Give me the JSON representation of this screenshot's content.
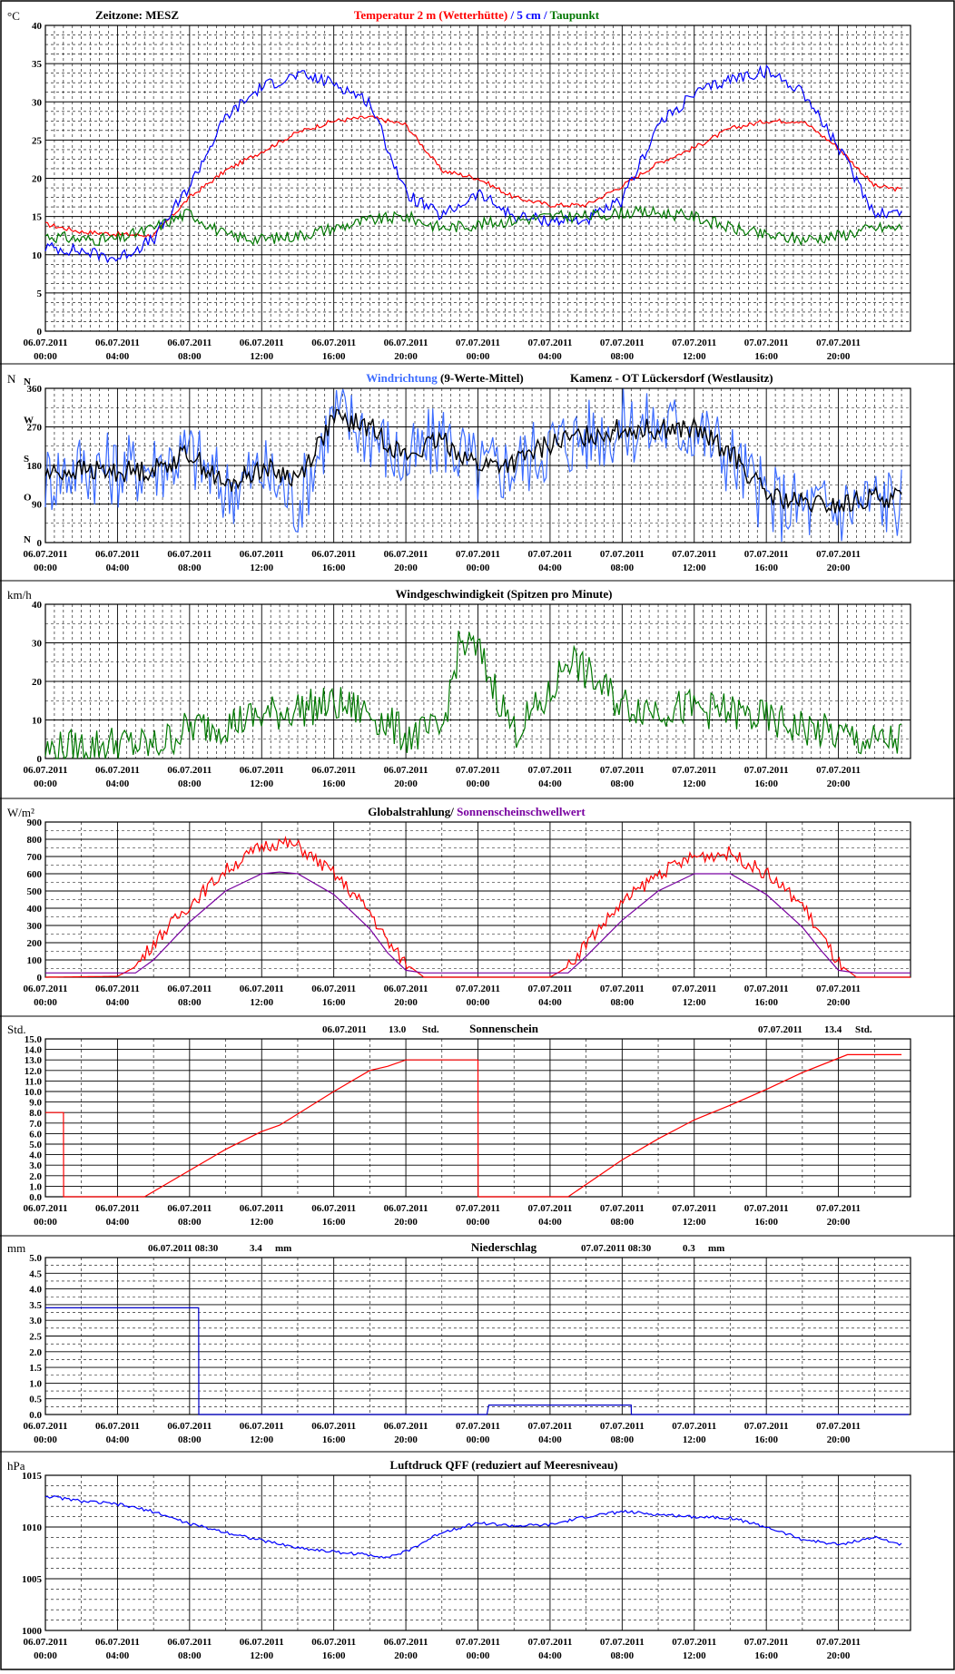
{
  "x_axis": {
    "dates": [
      "06.07.2011",
      "06.07.2011",
      "06.07.2011",
      "06.07.2011",
      "06.07.2011",
      "06.07.2011",
      "07.07.2011",
      "07.07.2011",
      "07.07.2011",
      "07.07.2011",
      "07.07.2011",
      "07.07.2011"
    ],
    "times": [
      "00:00",
      "04:00",
      "08:00",
      "12:00",
      "16:00",
      "20:00",
      "00:00",
      "04:00",
      "08:00",
      "12:00",
      "16:00",
      "20:00"
    ]
  },
  "colors": {
    "red": "#ff0000",
    "blue": "#0000ff",
    "lightblue": "#3c6cff",
    "green": "#007800",
    "purple": "#7800a0",
    "black": "#000000",
    "darkblue": "#0000c8"
  },
  "chart_data": [
    {
      "id": "temperature",
      "type": "line",
      "unit": "°C",
      "header_left": "Zeitzone: MESZ",
      "title_parts": [
        {
          "text": "Temperatur 2 m (Wetterhütte)",
          "color": "#ff0000"
        },
        {
          "text": " / ",
          "color": "#0000ff"
        },
        {
          "text": "5 cm",
          "color": "#0000ff"
        },
        {
          "text": " / ",
          "color": "#0000ff"
        },
        {
          "text": "Taupunkt",
          "color": "#007800"
        }
      ],
      "ylim": [
        0,
        40
      ],
      "yticks": [
        "0",
        "5",
        "10",
        "15",
        "20",
        "25",
        "30",
        "35",
        "40"
      ],
      "x_hours": [
        0,
        2,
        4,
        6,
        8,
        10,
        12,
        14,
        16,
        18,
        20,
        22,
        24,
        26,
        28,
        30,
        32,
        34,
        36,
        38,
        40,
        42,
        44,
        46,
        47.5
      ],
      "series": [
        {
          "key": "t2m",
          "color": "#ff0000",
          "values": [
            14,
            13,
            12.7,
            12.5,
            17.5,
            21,
            23.5,
            26,
            27.5,
            28,
            27,
            21,
            20,
            17.5,
            16.5,
            16.5,
            19,
            22,
            24,
            26.5,
            27.5,
            27.5,
            24,
            19,
            18.5
          ]
        },
        {
          "key": "t5cm",
          "color": "#0000ff",
          "values": [
            11,
            10.5,
            9.5,
            12,
            19,
            28,
            32,
            33.5,
            32.5,
            30,
            18,
            15,
            18,
            15,
            14.5,
            14.5,
            17,
            27,
            31,
            33,
            34,
            31.5,
            24,
            15.5,
            15.5
          ]
        },
        {
          "key": "dew",
          "color": "#007800",
          "values": [
            12.5,
            12,
            12,
            13.5,
            15.5,
            12.5,
            12,
            12.5,
            13.5,
            14.5,
            15,
            13.5,
            14,
            14.5,
            15,
            15,
            15.5,
            15.5,
            15,
            13.5,
            12.5,
            12,
            12.5,
            13.5,
            13.5
          ]
        }
      ]
    },
    {
      "id": "wind-direction",
      "type": "line",
      "unit": "N",
      "title_parts": [
        {
          "text": "Windrichtung",
          "color": "#3c6cff"
        },
        {
          "text": " (9-Werte-Mittel)",
          "color": "#000000"
        }
      ],
      "station": "Kamenz - OT Lückersdorf (Westlausitz)",
      "ylim": [
        0,
        360
      ],
      "yticks": [
        "0",
        "90",
        "180",
        "270",
        "360"
      ],
      "compass": [
        "N",
        "O",
        "S",
        "W",
        "N"
      ],
      "x_hours": [
        0,
        2,
        4,
        6,
        8,
        10,
        12,
        14,
        16,
        18,
        20,
        22,
        24,
        26,
        28,
        30,
        32,
        34,
        36,
        38,
        40,
        42,
        44,
        46,
        47.5
      ],
      "series": [
        {
          "key": "dir-raw",
          "color": "#3c6cff",
          "values": [
            150,
            180,
            170,
            180,
            210,
            120,
            170,
            90,
            300,
            260,
            180,
            250,
            170,
            180,
            230,
            250,
            270,
            270,
            270,
            200,
            100,
            80,
            80,
            100,
            100
          ]
        },
        {
          "key": "dir-mean",
          "color": "#000000",
          "values": [
            160,
            170,
            165,
            170,
            210,
            130,
            175,
            150,
            290,
            270,
            200,
            240,
            180,
            185,
            230,
            250,
            265,
            265,
            265,
            210,
            110,
            90,
            85,
            105,
            105
          ]
        }
      ]
    },
    {
      "id": "wind-speed",
      "type": "line",
      "unit": "km/h",
      "title": "Windgeschwindigkeit (Spitzen pro Minute)",
      "ylim": [
        0,
        40
      ],
      "yticks": [
        "0",
        "10",
        "20",
        "30",
        "40"
      ],
      "x_hours": [
        0,
        2,
        4,
        6,
        8,
        10,
        12,
        14,
        16,
        18,
        20,
        22,
        23,
        24,
        26,
        28,
        29,
        30,
        32,
        34,
        36,
        38,
        40,
        42,
        44,
        46,
        47.5
      ],
      "series": [
        {
          "key": "gust",
          "color": "#007800",
          "values": [
            2,
            3,
            4,
            3,
            8,
            9,
            11,
            13,
            14,
            12,
            6,
            7,
            30,
            28,
            7,
            16,
            27,
            22,
            14,
            13,
            13,
            12,
            10,
            8,
            6,
            4,
            5
          ]
        }
      ]
    },
    {
      "id": "global-radiation",
      "type": "line",
      "unit": "W/m²",
      "title_parts": [
        {
          "text": "Globalstrahlung/ ",
          "color": "#000000"
        },
        {
          "text": "Sonnenscheinschwellwert",
          "color": "#7800a0"
        }
      ],
      "ylim": [
        0,
        900
      ],
      "yticks": [
        "0",
        "100",
        "200",
        "300",
        "400",
        "500",
        "600",
        "700",
        "800",
        "900"
      ],
      "x_hours": [
        0,
        4,
        5,
        6,
        8,
        10,
        12,
        13,
        14,
        16,
        18,
        19,
        20,
        21,
        24,
        28,
        29,
        30,
        32,
        34,
        36,
        38,
        40,
        42,
        43,
        44,
        45,
        48
      ],
      "series": [
        {
          "key": "global",
          "color": "#ff0000",
          "values": [
            0,
            5,
            60,
            200,
            420,
            620,
            760,
            780,
            760,
            600,
            380,
            200,
            80,
            0,
            0,
            0,
            60,
            200,
            430,
            600,
            700,
            720,
            600,
            420,
            250,
            80,
            0,
            0
          ]
        },
        {
          "key": "threshold",
          "color": "#7800a0",
          "values": [
            25,
            25,
            25,
            100,
            320,
            500,
            600,
            610,
            600,
            480,
            280,
            140,
            40,
            25,
            25,
            25,
            25,
            120,
            330,
            500,
            600,
            600,
            480,
            290,
            160,
            40,
            25,
            25
          ]
        }
      ]
    },
    {
      "id": "sunshine",
      "type": "line",
      "unit": "Std.",
      "title": "Sonnenschein",
      "day1_label": "06.07.2011",
      "day1_value": "13.0",
      "day1_unit": "Std.",
      "day2_label": "07.07.2011",
      "day2_value": "13.4",
      "day2_unit": "Std.",
      "ylim": [
        0,
        15
      ],
      "yticks": [
        "0.0",
        "1.0",
        "2.0",
        "3.0",
        "4.0",
        "5.0",
        "6.0",
        "7.0",
        "8.0",
        "9.0",
        "10.0",
        "11.0",
        "12.0",
        "13.0",
        "14.0",
        "15.0"
      ],
      "x_hours": [
        0,
        1,
        1.01,
        5.5,
        8,
        10,
        12,
        13,
        16,
        18,
        19,
        20,
        24,
        24.01,
        29,
        32,
        34,
        36,
        38,
        40,
        42,
        44.5,
        47.5
      ],
      "series": [
        {
          "key": "sun",
          "color": "#ff0000",
          "values": [
            8,
            8,
            0,
            0,
            2.5,
            4.5,
            6.2,
            6.8,
            10,
            12,
            12.4,
            13,
            13,
            0,
            0,
            3.5,
            5.5,
            7.3,
            8.7,
            10.2,
            11.8,
            13.5,
            13.5
          ]
        }
      ]
    },
    {
      "id": "precipitation",
      "type": "line",
      "unit": "mm",
      "title": "Niederschlag",
      "day1_label": "06.07.2011 08:30",
      "day1_value": "3.4",
      "day1_unit": "mm",
      "day2_label": "07.07.2011 08:30",
      "day2_value": "0.3",
      "day2_unit": "mm",
      "ylim": [
        0,
        5
      ],
      "yticks": [
        "0.0",
        "0.5",
        "1.0",
        "1.5",
        "2.0",
        "2.5",
        "3.0",
        "3.5",
        "4.0",
        "4.5",
        "5.0"
      ],
      "x_hours": [
        0,
        8.5,
        8.51,
        24.5,
        24.6,
        32.5,
        32.51,
        47.9
      ],
      "series": [
        {
          "key": "rain",
          "color": "#0000c8",
          "values": [
            3.4,
            3.4,
            0,
            0,
            0.3,
            0.3,
            0,
            0
          ]
        }
      ]
    },
    {
      "id": "pressure",
      "type": "line",
      "unit": "hPa",
      "title": "Luftdruck QFF (reduziert auf Meeresniveau)",
      "ylim": [
        1000,
        1015
      ],
      "yticks": [
        "1000",
        "1005",
        "1010",
        "1015"
      ],
      "x_hours": [
        0,
        2,
        4,
        6,
        8,
        10,
        12,
        14,
        16,
        18,
        19,
        20,
        22,
        24,
        26,
        28,
        30,
        32,
        34,
        36,
        38,
        40,
        42,
        44,
        46,
        47.5
      ],
      "series": [
        {
          "key": "qff",
          "color": "#0000ff",
          "values": [
            1013,
            1012.5,
            1012.2,
            1011.5,
            1010.3,
            1009.5,
            1008.7,
            1008,
            1007.6,
            1007.3,
            1007.1,
            1007.6,
            1009.5,
            1010.4,
            1010.1,
            1010.2,
            1011,
            1011.5,
            1011.2,
            1011,
            1010.9,
            1010,
            1008.8,
            1008.3,
            1009,
            1008.3
          ]
        }
      ]
    }
  ]
}
